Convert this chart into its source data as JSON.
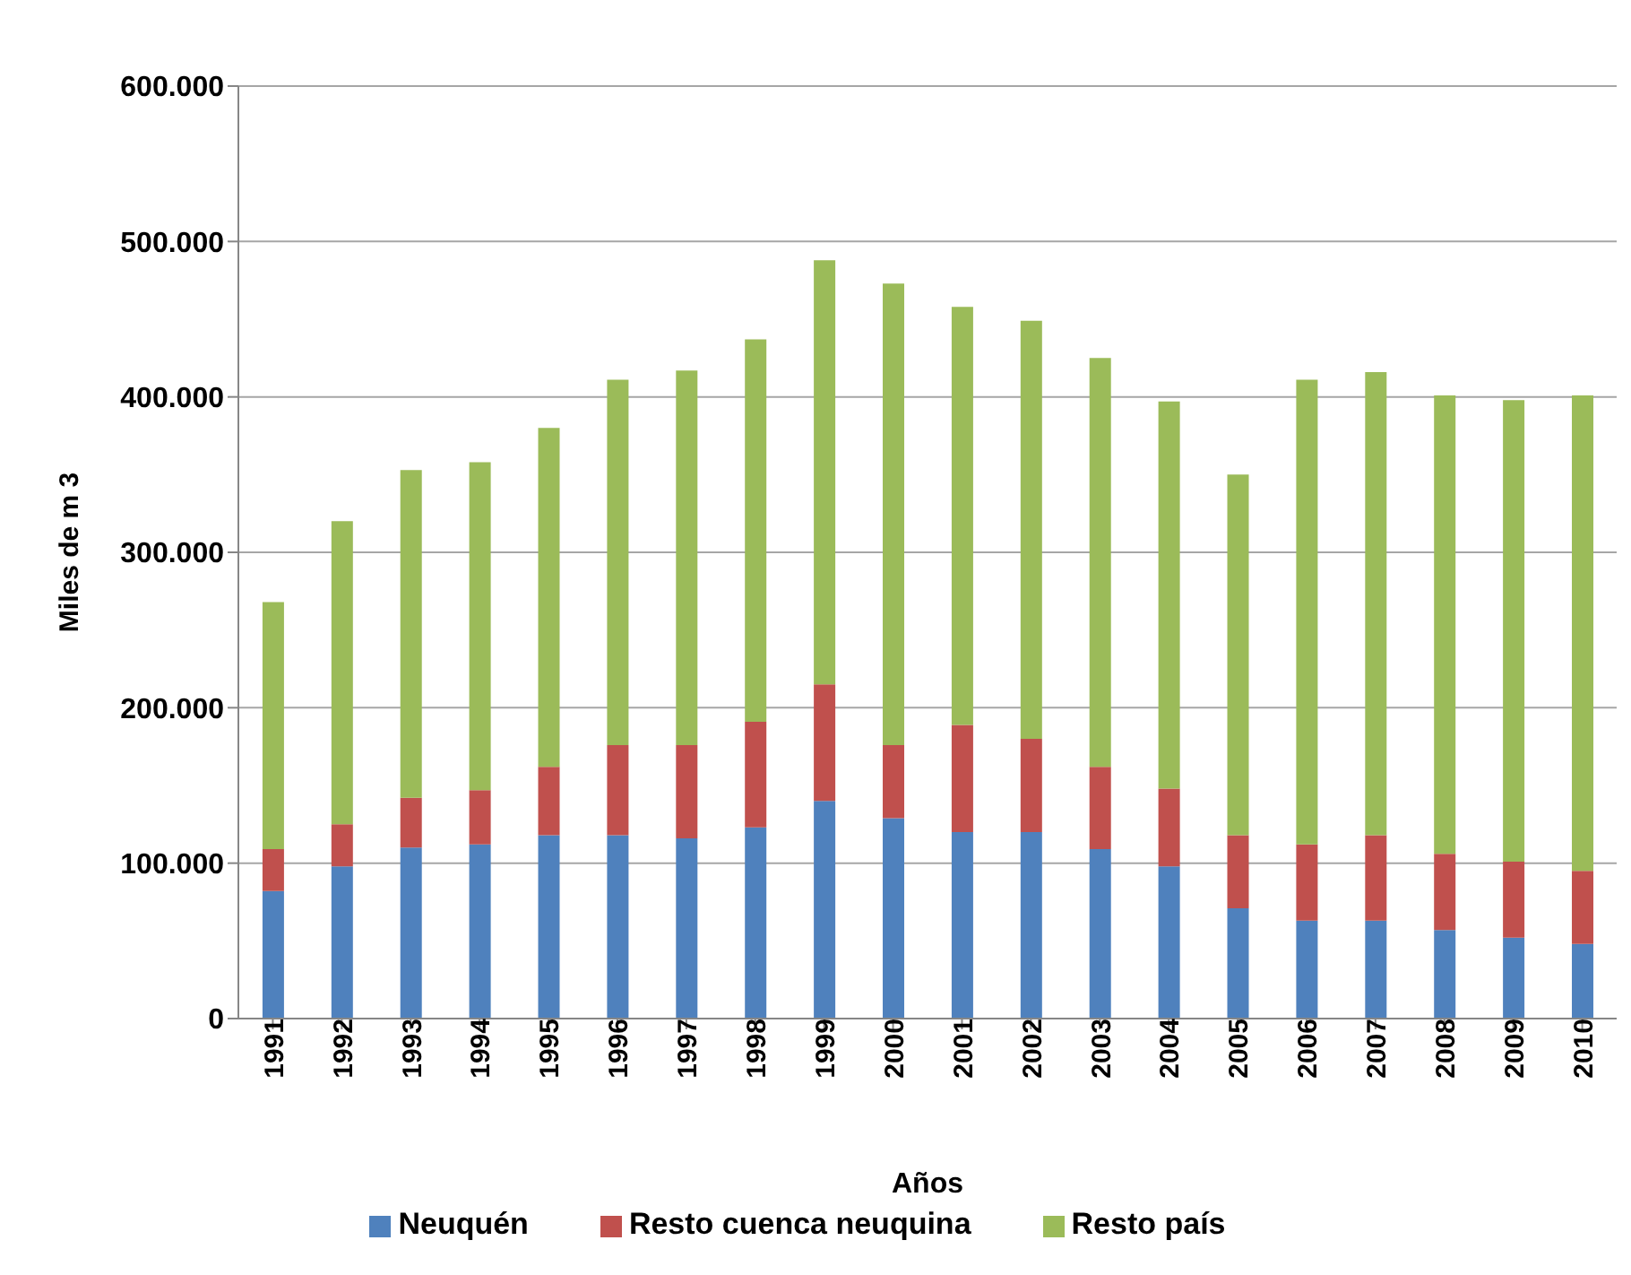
{
  "chart_data": {
    "type": "bar",
    "stacked": true,
    "xlabel": "Años",
    "ylabel": "Miles de m 3",
    "categories": [
      "1991",
      "1992",
      "1993",
      "1994",
      "1995",
      "1996",
      "1997",
      "1998",
      "1999",
      "2000",
      "2001",
      "2002",
      "2003",
      "2004",
      "2005",
      "2006",
      "2007",
      "2008",
      "2009",
      "2010"
    ],
    "series": [
      {
        "name": "Neuquén",
        "color": "#4f81bd",
        "values": [
          82000,
          98000,
          110000,
          112000,
          118000,
          118000,
          116000,
          123000,
          140000,
          129000,
          120000,
          120000,
          109000,
          98000,
          71000,
          63000,
          63000,
          57000,
          52000,
          48000
        ]
      },
      {
        "name": "Resto cuenca neuquina",
        "color": "#c0504d",
        "values": [
          27000,
          27000,
          32000,
          35000,
          44000,
          58000,
          60000,
          68000,
          75000,
          47000,
          69000,
          60000,
          53000,
          50000,
          47000,
          49000,
          55000,
          49000,
          49000,
          47000
        ]
      },
      {
        "name": "Resto país",
        "color": "#9bbb59",
        "values": [
          159000,
          195000,
          211000,
          211000,
          218000,
          235000,
          241000,
          246000,
          273000,
          297000,
          269000,
          269000,
          263000,
          249000,
          232000,
          299000,
          298000,
          295000,
          297000,
          306000
        ]
      }
    ],
    "ylim": [
      0,
      600000
    ],
    "yticks": [
      {
        "value": 0,
        "label": "0"
      },
      {
        "value": 100000,
        "label": "100.000"
      },
      {
        "value": 200000,
        "label": "200.000"
      },
      {
        "value": 300000,
        "label": "300.000"
      },
      {
        "value": 400000,
        "label": "400.000"
      },
      {
        "value": 500000,
        "label": "500.000"
      },
      {
        "value": 600000,
        "label": "600.000"
      }
    ],
    "grid": "y",
    "legend": "bottom"
  }
}
